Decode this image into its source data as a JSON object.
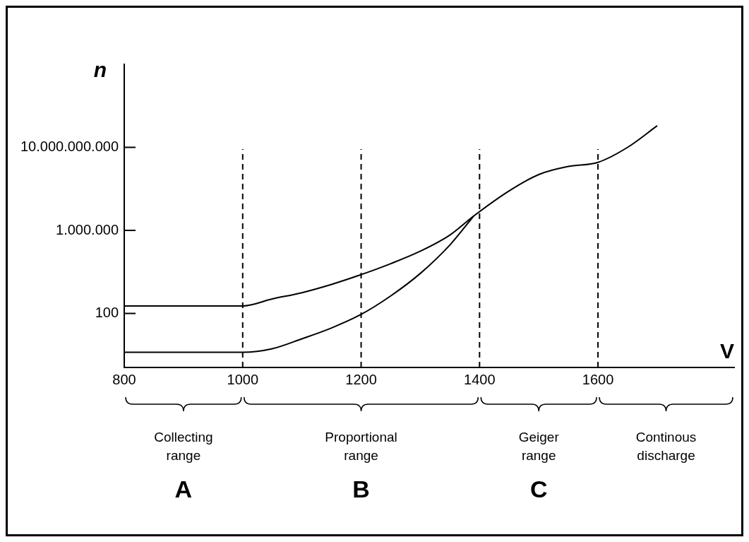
{
  "chart_data": {
    "type": "line",
    "xlabel": "V",
    "ylabel": "n",
    "xlim": [
      800,
      1830
    ],
    "xticks": [
      800,
      1000,
      1200,
      1400,
      1600
    ],
    "ylim": [
      0.25,
      100000000000000
    ],
    "yticks": [
      {
        "value": 100,
        "label": "100"
      },
      {
        "value": 1000000,
        "label": "1.000.000"
      },
      {
        "value": 10000000000,
        "label": "10.000.000.000"
      }
    ],
    "log": "y",
    "grid": false,
    "legend": false,
    "marker": "none",
    "line_style": "solid",
    "series": [
      {
        "color": "#000000",
        "x": [
          800,
          1000,
          1050,
          1100,
          1150,
          1200,
          1250,
          1300,
          1350,
          1390,
          1450,
          1500,
          1550,
          1600,
          1650,
          1700
        ],
        "values": [
          230,
          230,
          500,
          1000,
          2500,
          7400,
          25000,
          100000,
          600000,
          4900000,
          80000000,
          490000000,
          1200000000,
          1900000000,
          10000000000,
          110000000000
        ]
      },
      {
        "color": "#000000",
        "x": [
          800,
          1000,
          1050,
          1100,
          1150,
          1200,
          1250,
          1300,
          1350,
          1390
        ],
        "values": [
          1.35,
          1.35,
          2,
          6,
          20,
          90,
          700,
          8500,
          200000,
          4900000
        ]
      }
    ],
    "ref_lines": [
      {
        "axis": "x",
        "value": 1000,
        "line_style": "dashed",
        "color": "#000000"
      },
      {
        "axis": "x",
        "value": 1200,
        "line_style": "dashed",
        "color": "#000000"
      },
      {
        "axis": "x",
        "value": 1400,
        "line_style": "dashed",
        "color": "#000000"
      },
      {
        "axis": "x",
        "value": 1600,
        "line_style": "dashed",
        "color": "#000000"
      }
    ],
    "annotations": [
      "Collecting range",
      "Proportional range",
      "Geiger range",
      "Continous discharge",
      "A",
      "B",
      "C"
    ]
  }
}
